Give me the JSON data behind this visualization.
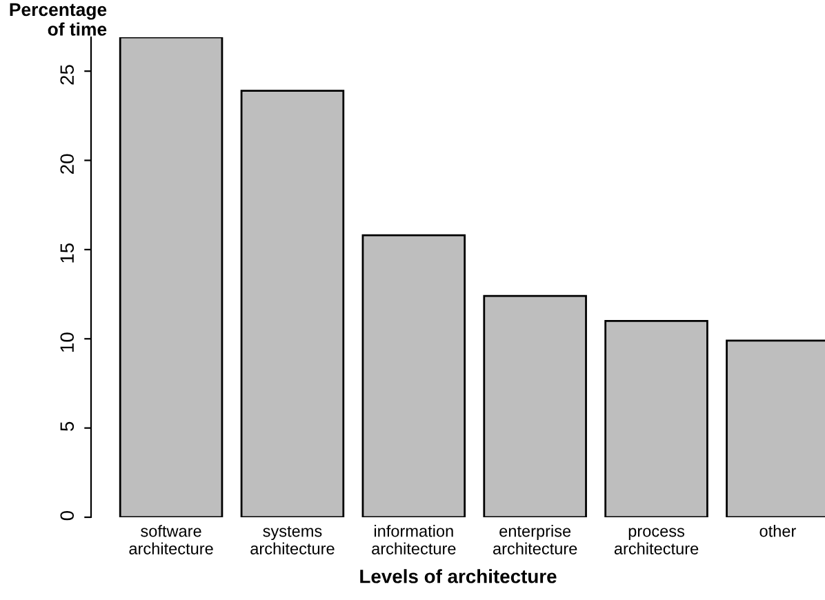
{
  "chart_data": {
    "type": "bar",
    "xlabel": "Levels of architecture",
    "ylabel": "Percentage\nof time",
    "categories": [
      "software\narchitecture",
      "systems\narchitecture",
      "information\narchitecture",
      "enterprise\narchitecture",
      "process\narchitecture",
      "other"
    ],
    "values": [
      26.9,
      23.9,
      15.8,
      12.4,
      11.0,
      9.9
    ],
    "color": "#bebebe",
    "ylim": [
      0,
      26.9
    ],
    "yticks": [
      0,
      5,
      10,
      15,
      20,
      25
    ],
    "grid": false
  }
}
